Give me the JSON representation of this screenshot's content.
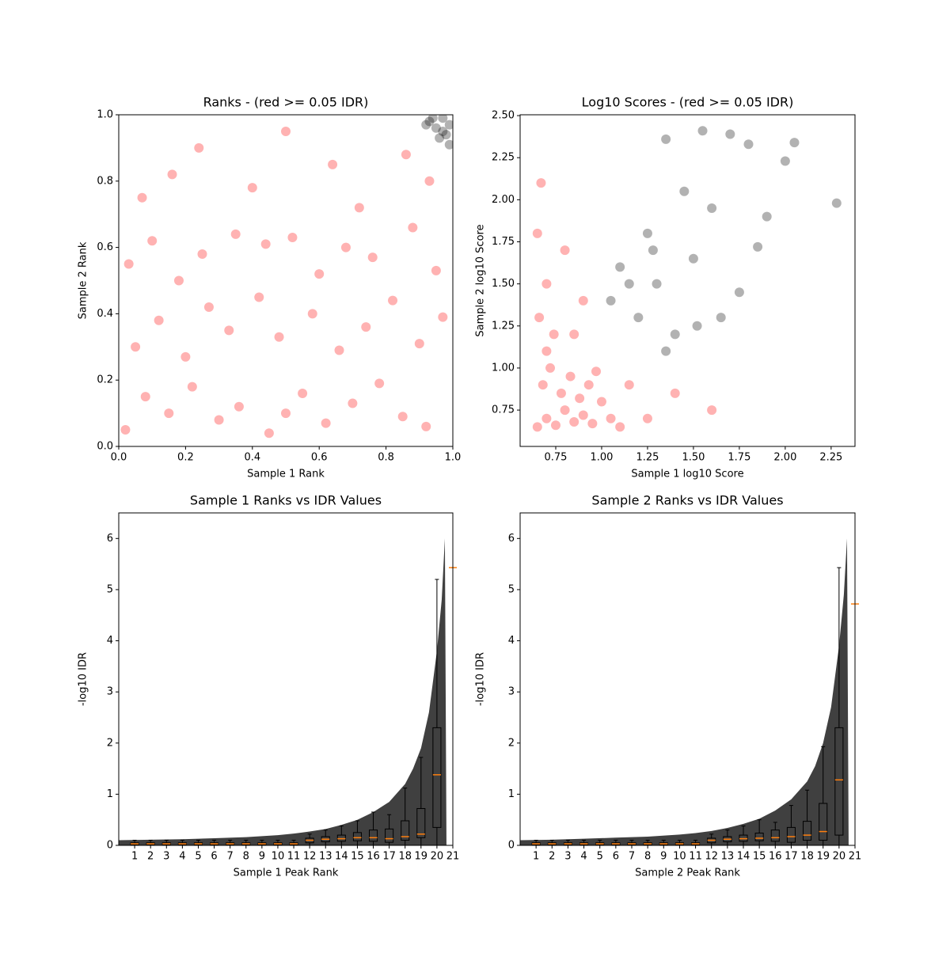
{
  "chart_data": [
    {
      "type": "scatter",
      "title": "Ranks - (red >= 0.05 IDR)",
      "xlabel": "Sample 1 Rank",
      "ylabel": "Sample 2 Rank",
      "xlim": [
        0,
        1
      ],
      "ylim": [
        0,
        1
      ],
      "xticks": [
        {
          "value": 0,
          "label": "0.0"
        },
        0.2,
        0.4,
        0.6,
        0.8,
        {
          "value": 1,
          "label": "1.0"
        }
      ],
      "yticks": [
        {
          "value": 0,
          "label": "0.0"
        },
        0.2,
        0.4,
        0.6,
        0.8,
        {
          "value": 1,
          "label": "1.0"
        }
      ],
      "series": [
        {
          "color": "#ff0000",
          "x": [
            0.02,
            0.08,
            0.15,
            0.22,
            0.3,
            0.36,
            0.45,
            0.5,
            0.55,
            0.62,
            0.7,
            0.78,
            0.85,
            0.92,
            0.05,
            0.12,
            0.2,
            0.27,
            0.33,
            0.42,
            0.48,
            0.58,
            0.66,
            0.74,
            0.82,
            0.9,
            0.97,
            0.03,
            0.1,
            0.18,
            0.25,
            0.35,
            0.44,
            0.52,
            0.6,
            0.68,
            0.76,
            0.88,
            0.95,
            0.07,
            0.16,
            0.24,
            0.4,
            0.5,
            0.64,
            0.72,
            0.86,
            0.93
          ],
          "y": [
            0.05,
            0.15,
            0.1,
            0.18,
            0.08,
            0.12,
            0.04,
            0.1,
            0.16,
            0.07,
            0.13,
            0.19,
            0.09,
            0.06,
            0.3,
            0.38,
            0.27,
            0.42,
            0.35,
            0.45,
            0.33,
            0.4,
            0.29,
            0.36,
            0.44,
            0.31,
            0.39,
            0.55,
            0.62,
            0.5,
            0.58,
            0.64,
            0.61,
            0.63,
            0.52,
            0.6,
            0.57,
            0.66,
            0.53,
            0.75,
            0.82,
            0.9,
            0.78,
            0.95,
            0.85,
            0.72,
            0.88,
            0.8
          ]
        },
        {
          "color": "#000000",
          "x": [
            0.93,
            0.95,
            0.97,
            0.99,
            0.96,
            0.98,
            0.94,
            0.99,
            0.97,
            0.92
          ],
          "y": [
            0.98,
            0.96,
            0.99,
            0.97,
            0.93,
            0.94,
            0.99,
            0.91,
            0.95,
            0.97
          ]
        }
      ]
    },
    {
      "type": "scatter",
      "title": "Log10 Scores - (red >= 0.05 IDR)",
      "xlabel": "Sample 1 log10 Score",
      "ylabel": "Sample 2 log10 Score",
      "xlim": [
        0.556,
        2.38
      ],
      "ylim": [
        0.534,
        2.505
      ],
      "xticks": [
        0.75,
        {
          "value": 1,
          "label": "1.00"
        },
        1.25,
        {
          "value": 1.5,
          "label": "1.50"
        },
        1.75,
        {
          "value": 2,
          "label": "2.00"
        },
        2.25
      ],
      "yticks": [
        0.75,
        {
          "value": 1,
          "label": "1.00"
        },
        1.25,
        {
          "value": 1.5,
          "label": "1.50"
        },
        1.75,
        {
          "value": 2,
          "label": "2.00"
        },
        2.25,
        {
          "value": 2.5,
          "label": "2.50"
        }
      ],
      "series": [
        {
          "color": "#ff0000",
          "x": [
            0.65,
            0.7,
            0.75,
            0.8,
            0.85,
            0.9,
            0.95,
            1.0,
            1.05,
            1.1,
            0.68,
            0.72,
            0.78,
            0.83,
            0.88,
            0.93,
            0.66,
            0.7,
            0.74,
            0.65,
            0.67,
            0.8,
            0.9,
            1.15,
            1.25,
            1.4,
            1.6,
            0.7,
            0.85,
            0.97
          ],
          "y": [
            0.65,
            0.7,
            0.66,
            0.75,
            0.68,
            0.72,
            0.67,
            0.8,
            0.7,
            0.65,
            0.9,
            1.0,
            0.85,
            0.95,
            0.82,
            0.9,
            1.3,
            1.5,
            1.2,
            1.8,
            2.1,
            1.7,
            1.4,
            0.9,
            0.7,
            0.85,
            0.75,
            1.1,
            1.2,
            0.98
          ]
        },
        {
          "color": "#000000",
          "x": [
            1.05,
            1.1,
            1.2,
            1.25,
            1.3,
            1.35,
            1.4,
            1.5,
            1.55,
            1.6,
            1.7,
            1.75,
            1.8,
            1.9,
            2.0,
            2.05,
            2.28,
            1.15,
            1.45,
            1.65,
            1.35,
            1.28,
            1.85,
            1.52
          ],
          "y": [
            1.4,
            1.6,
            1.3,
            1.8,
            1.5,
            2.36,
            1.2,
            1.65,
            2.41,
            1.95,
            2.39,
            1.45,
            2.33,
            1.9,
            2.23,
            2.34,
            1.98,
            1.5,
            2.05,
            1.3,
            1.1,
            1.7,
            1.72,
            1.25
          ]
        }
      ]
    },
    {
      "type": "box",
      "title": "Sample 1 Ranks vs IDR Values",
      "xlabel": "Sample 1 Peak Rank",
      "ylabel": "-log10 IDR",
      "xlim": [
        0,
        21
      ],
      "ylim": [
        0,
        6.5
      ],
      "xticks": [
        1,
        2,
        3,
        4,
        5,
        6,
        7,
        8,
        9,
        10,
        11,
        12,
        13,
        14,
        15,
        16,
        17,
        18,
        19,
        20,
        21
      ],
      "yticks": [
        0,
        1,
        2,
        3,
        4,
        5,
        6
      ],
      "cloud": {
        "color": "#000000",
        "x": [
          0,
          2,
          4,
          6,
          8,
          10,
          11,
          12,
          13,
          14,
          15,
          16,
          17,
          18,
          18.5,
          19,
          19.5,
          20,
          20.3,
          20.5,
          20.6
        ],
        "values": [
          0.1,
          0.11,
          0.12,
          0.14,
          0.16,
          0.2,
          0.23,
          0.27,
          0.32,
          0.4,
          0.5,
          0.65,
          0.85,
          1.2,
          1.5,
          1.9,
          2.6,
          3.8,
          4.8,
          6.0,
          0
        ]
      },
      "median_color": "#ff7f0e",
      "boxes": {
        "positions": [
          1,
          2,
          3,
          4,
          5,
          6,
          7,
          8,
          9,
          10,
          11,
          12,
          13,
          14,
          15,
          16,
          17,
          18,
          19,
          20,
          21
        ],
        "low": [
          0,
          0,
          0,
          0,
          0,
          0,
          0,
          0,
          0,
          0,
          0,
          0,
          0,
          0,
          0,
          0,
          0,
          0,
          0,
          0,
          5.43
        ],
        "q1": [
          0.01,
          0.01,
          0.01,
          0.01,
          0.01,
          0.01,
          0.01,
          0.01,
          0.01,
          0.01,
          0.01,
          0.05,
          0.07,
          0.08,
          0.09,
          0.08,
          0.06,
          0.1,
          0.15,
          0.35,
          5.43
        ],
        "median": [
          0.03,
          0.03,
          0.03,
          0.03,
          0.03,
          0.03,
          0.03,
          0.03,
          0.03,
          0.03,
          0.03,
          0.1,
          0.12,
          0.13,
          0.15,
          0.15,
          0.13,
          0.17,
          0.22,
          1.38,
          5.43
        ],
        "q3": [
          0.05,
          0.05,
          0.05,
          0.05,
          0.05,
          0.05,
          0.05,
          0.05,
          0.05,
          0.05,
          0.05,
          0.14,
          0.17,
          0.2,
          0.25,
          0.3,
          0.32,
          0.48,
          0.72,
          2.3,
          5.43
        ],
        "high": [
          0.1,
          0.1,
          0.1,
          0.1,
          0.1,
          0.1,
          0.1,
          0.1,
          0.1,
          0.1,
          0.1,
          0.22,
          0.3,
          0.38,
          0.48,
          0.65,
          0.6,
          1.12,
          1.72,
          5.2,
          5.43
        ]
      }
    },
    {
      "type": "box",
      "title": "Sample 2 Ranks vs IDR Values",
      "xlabel": "Sample 2 Peak Rank",
      "ylabel": "-log10 IDR",
      "xlim": [
        0,
        21
      ],
      "ylim": [
        0,
        6.5
      ],
      "xticks": [
        1,
        2,
        3,
        4,
        5,
        6,
        7,
        8,
        9,
        10,
        11,
        12,
        13,
        14,
        15,
        16,
        17,
        18,
        19,
        20,
        21
      ],
      "yticks": [
        0,
        1,
        2,
        3,
        4,
        5,
        6
      ],
      "cloud": {
        "color": "#000000",
        "x": [
          0,
          2,
          4,
          6,
          8,
          10,
          11,
          12,
          13,
          14,
          15,
          16,
          17,
          18,
          18.5,
          19,
          19.5,
          20,
          20.3,
          20.5,
          20.6
        ],
        "values": [
          0.1,
          0.11,
          0.13,
          0.15,
          0.17,
          0.21,
          0.24,
          0.28,
          0.34,
          0.42,
          0.52,
          0.68,
          0.9,
          1.25,
          1.55,
          2.0,
          2.7,
          3.9,
          4.9,
          6.0,
          0
        ]
      },
      "median_color": "#ff7f0e",
      "boxes": {
        "positions": [
          1,
          2,
          3,
          4,
          5,
          6,
          7,
          8,
          9,
          10,
          11,
          12,
          13,
          14,
          15,
          16,
          17,
          18,
          19,
          20,
          21
        ],
        "low": [
          0,
          0,
          0,
          0,
          0,
          0,
          0,
          0,
          0,
          0,
          0,
          0,
          0,
          0,
          0,
          0,
          0,
          0,
          0,
          0,
          4.72
        ],
        "q1": [
          0.01,
          0.01,
          0.01,
          0.01,
          0.01,
          0.01,
          0.01,
          0.01,
          0.01,
          0.01,
          0.01,
          0.05,
          0.07,
          0.08,
          0.09,
          0.08,
          0.06,
          0.1,
          0.1,
          0.2,
          4.72
        ],
        "median": [
          0.03,
          0.03,
          0.03,
          0.03,
          0.03,
          0.03,
          0.03,
          0.03,
          0.03,
          0.03,
          0.03,
          0.1,
          0.12,
          0.13,
          0.14,
          0.15,
          0.17,
          0.2,
          0.27,
          1.28,
          4.72
        ],
        "q3": [
          0.05,
          0.05,
          0.05,
          0.05,
          0.05,
          0.05,
          0.05,
          0.05,
          0.05,
          0.05,
          0.05,
          0.14,
          0.17,
          0.2,
          0.24,
          0.3,
          0.35,
          0.47,
          0.82,
          2.3,
          4.72
        ],
        "high": [
          0.1,
          0.1,
          0.1,
          0.1,
          0.1,
          0.1,
          0.1,
          0.1,
          0.1,
          0.1,
          0.1,
          0.22,
          0.3,
          0.38,
          0.5,
          0.45,
          0.78,
          1.08,
          1.93,
          5.43,
          4.72
        ]
      }
    }
  ]
}
